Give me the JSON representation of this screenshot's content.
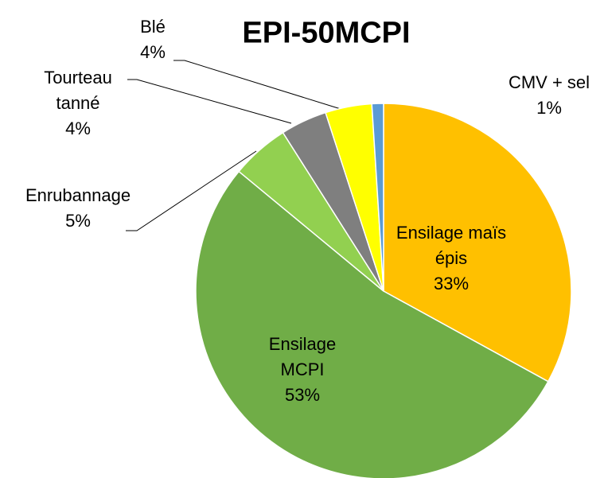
{
  "chart_data": {
    "type": "pie",
    "title": "EPI-50MCPI",
    "categories": [
      "Ensilage maïs épis",
      "Ensilage MCPI",
      "Enrubannage",
      "Tourteau tanné",
      "Blé",
      "CMV + sel"
    ],
    "values": [
      33,
      53,
      5,
      4,
      4,
      1
    ],
    "value_labels": [
      "33%",
      "53%",
      "5%",
      "4%",
      "4%",
      "1%"
    ],
    "colors": [
      "#ffc000",
      "#70ad47",
      "#92d050",
      "#7f7f7f",
      "#ffff00",
      "#5b9bd5"
    ]
  }
}
